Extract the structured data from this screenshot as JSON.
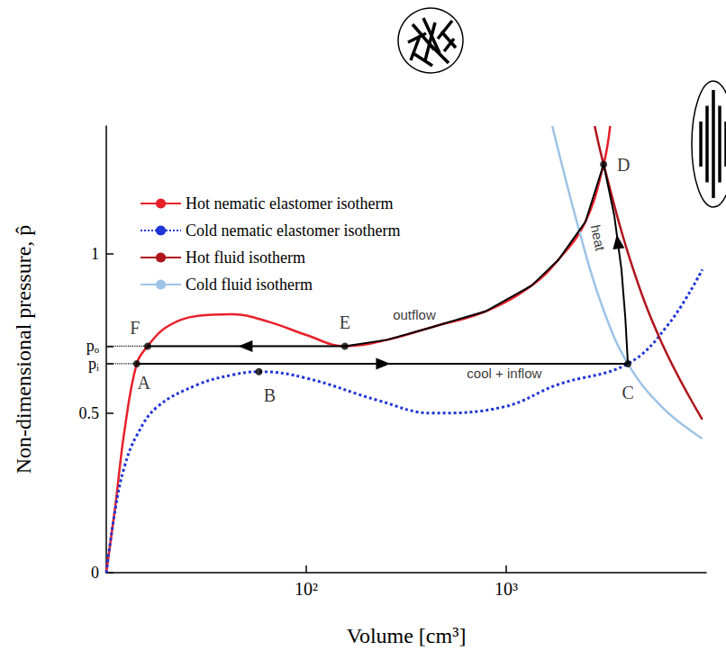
{
  "chart_data": {
    "type": "line",
    "log": "x",
    "grid": false,
    "legend": "upper left",
    "xlabel": "Volume [cm³]",
    "ylabel": "Non-dimensional pressure, p̂",
    "xlim": [
      10,
      10000
    ],
    "ylim": [
      0,
      1.4
    ],
    "xticks": [
      {
        "value": 100,
        "label": "10²"
      },
      {
        "value": 1000,
        "label": "10³"
      }
    ],
    "yticks": [
      0,
      0.5,
      {
        "value": 0.655,
        "label": "pᵢ"
      },
      {
        "value": 0.71,
        "label": "pₒ"
      },
      1
    ],
    "series": [
      {
        "name": "Hot nematic elastomer isotherm",
        "color": "#e8202a",
        "line_style": "solid",
        "x": [
          10,
          11.1,
          12.3,
          14.2,
          16.1,
          20,
          28.8,
          42.8,
          66,
          100,
          156,
          254,
          427,
          795,
          1340,
          1820,
          2490,
          3070,
          3310
        ],
        "values": [
          0,
          0.21,
          0.44,
          0.655,
          0.71,
          0.77,
          0.805,
          0.81,
          0.785,
          0.745,
          0.71,
          0.73,
          0.77,
          0.82,
          0.9,
          0.98,
          1.1,
          1.28,
          1.4
        ]
      },
      {
        "name": "Cold nematic elastomer isotherm",
        "color": "#1f35d8",
        "line_style": "dotted",
        "x": [
          10,
          11.1,
          12.3,
          14.2,
          18,
          28.8,
          42.8,
          58,
          100,
          229,
          427,
          977,
          1820,
          4060,
          6500,
          9560
        ],
        "values": [
          0,
          0.2,
          0.33,
          0.43,
          0.52,
          0.59,
          0.62,
          0.63,
          0.61,
          0.54,
          0.5,
          0.52,
          0.59,
          0.655,
          0.78,
          0.95
        ]
      },
      {
        "name": "Hot fluid isotherm",
        "color": "#b0141c",
        "line_style": "solid",
        "x": [
          2770,
          3070,
          4170,
          6000,
          9560
        ],
        "values": [
          1.4,
          1.28,
          0.98,
          0.72,
          0.48
        ]
      },
      {
        "name": "Cold fluid isotherm",
        "color": "#9dc3e6",
        "line_style": "solid",
        "x": [
          1700,
          2300,
          3000,
          4060,
          6000,
          9560
        ],
        "values": [
          1.4,
          1.08,
          0.84,
          0.655,
          0.52,
          0.42
        ]
      },
      {
        "color": "#000000",
        "line_style": "solid",
        "x": [
          14.2,
          4060,
          3940,
          3770,
          3470,
          3070,
          2490,
          1820,
          1340,
          795,
          427,
          254,
          156,
          16.1
        ],
        "values": [
          0.655,
          0.655,
          0.8,
          0.95,
          1.12,
          1.28,
          1.1,
          0.98,
          0.9,
          0.82,
          0.77,
          0.73,
          0.71,
          0.71
        ]
      }
    ],
    "annotations": [
      {
        "text": "A",
        "x": 14.2,
        "y": 0.655,
        "marker": "circle"
      },
      {
        "text": "B",
        "x": 58,
        "y": 0.63,
        "marker": "circle"
      },
      {
        "text": "C",
        "x": 4060,
        "y": 0.655,
        "marker": "circle"
      },
      {
        "text": "D",
        "x": 3070,
        "y": 1.28,
        "marker": "circle"
      },
      {
        "text": "E",
        "x": 156,
        "y": 0.71,
        "marker": "circle"
      },
      {
        "text": "F",
        "x": 16.1,
        "y": 0.71,
        "marker": "circle"
      },
      {
        "text": "outflow",
        "x": 347,
        "y": 0.81
      },
      {
        "text": "cool + inflow",
        "x": 978,
        "y": 0.625
      },
      {
        "text": "heat",
        "x": 2880,
        "y": 1.05
      }
    ]
  }
}
